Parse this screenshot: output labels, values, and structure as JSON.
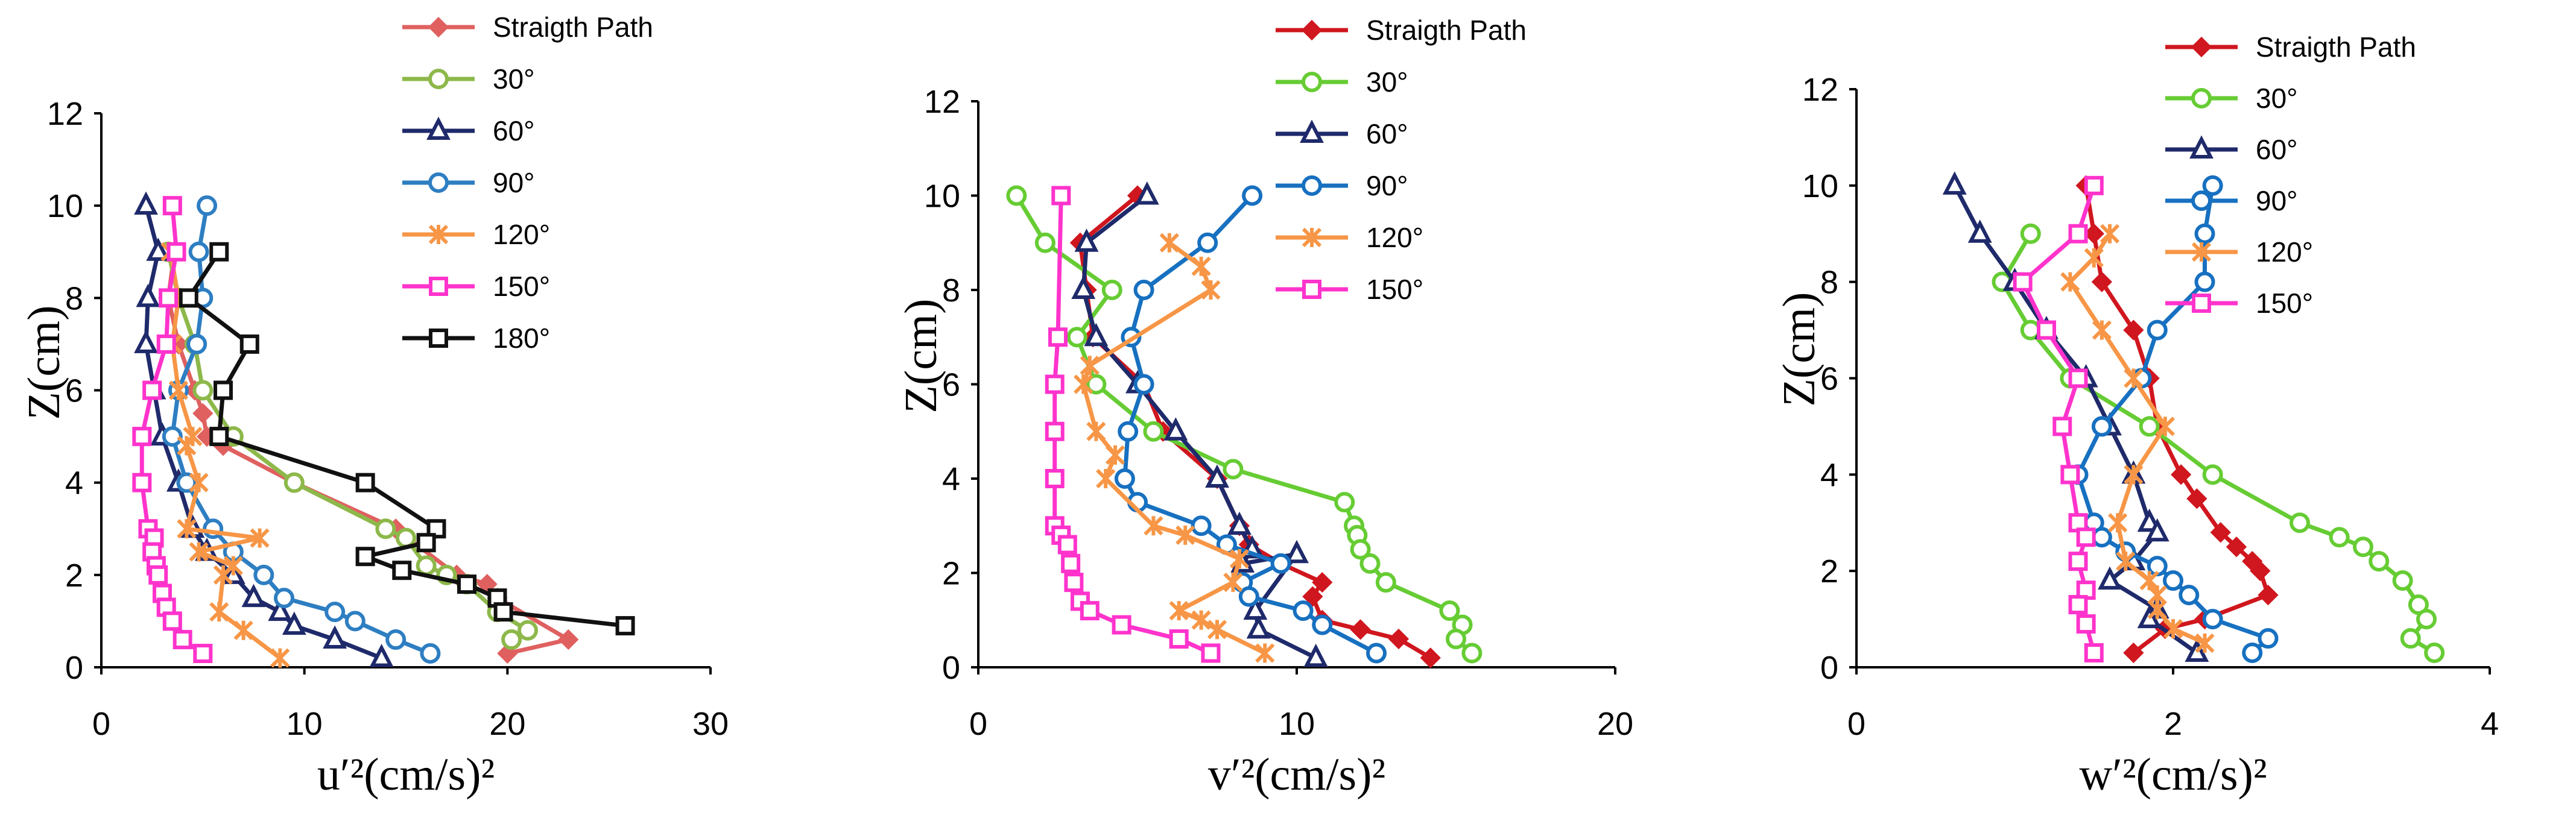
{
  "chart_data": [
    {
      "type": "line",
      "xlabel": "u′²(cm/s)²",
      "ylabel": "Z(cm)",
      "xlim": [
        0,
        30
      ],
      "ylim": [
        0,
        12
      ],
      "xticks": [
        0,
        10,
        20,
        30
      ],
      "yticks": [
        0,
        2,
        4,
        6,
        8,
        10,
        12
      ],
      "legend_position": "top-right",
      "series": [
        {
          "name": "Straigth Path",
          "color": "#E06060",
          "marker": "diamond",
          "x": [
            3.6,
            3.3,
            3.8,
            4.6,
            5.0,
            5.2,
            6.0,
            9.5,
            14.5,
            17.5,
            19.0,
            19.5,
            23.0,
            20.0
          ],
          "y": [
            9,
            8,
            7,
            6,
            5.5,
            5,
            4.8,
            4,
            3,
            2,
            1.8,
            1.5,
            0.6,
            0.3
          ]
        },
        {
          "name": "30°",
          "color": "#8DB84A",
          "marker": "circle",
          "x": [
            3.3,
            3.8,
            4.6,
            5.0,
            6.5,
            9.5,
            14.0,
            15.0,
            16.0,
            17.0,
            18.0,
            19.5,
            21.0,
            20.2
          ],
          "y": [
            9,
            8,
            7,
            6,
            5,
            4,
            3,
            2.8,
            2.2,
            2.0,
            1.8,
            1.2,
            0.8,
            0.6
          ]
        },
        {
          "name": "60°",
          "color": "#1F2A6B",
          "marker": "triangle",
          "x": [
            2.2,
            2.8,
            2.3,
            2.2,
            2.6,
            3.0,
            3.8,
            4.5,
            5.2,
            6.5,
            7.5,
            8.8,
            9.5,
            11.5,
            13.8
          ],
          "y": [
            10,
            9,
            8,
            7,
            6,
            5,
            4,
            3,
            2.5,
            2,
            1.5,
            1.2,
            0.9,
            0.6,
            0.2
          ]
        },
        {
          "name": "90°",
          "color": "#2E7EC2",
          "marker": "circle",
          "x": [
            5.2,
            4.8,
            5.0,
            4.7,
            3.8,
            3.5,
            4.2,
            5.5,
            6.5,
            8.0,
            9.0,
            11.5,
            12.5,
            14.5,
            16.2
          ],
          "y": [
            10,
            9,
            8,
            7,
            6,
            5,
            4,
            3,
            2.5,
            2,
            1.5,
            1.2,
            1.0,
            0.6,
            0.3
          ]
        },
        {
          "name": "120°",
          "color": "#F79646",
          "marker": "x",
          "x": [
            3.4,
            3.8,
            3.5,
            3.8,
            4.5,
            4.2,
            4.8,
            4.2,
            7.8,
            4.8,
            6.5,
            6.0,
            5.8,
            7.0,
            8.8
          ],
          "y": [
            9,
            8,
            7,
            6,
            5,
            4.8,
            4,
            3,
            2.8,
            2.5,
            2.2,
            2,
            1.2,
            0.8,
            0.2
          ]
        },
        {
          "name": "150°",
          "color": "#FF33CC",
          "marker": "square",
          "x": [
            3.5,
            3.7,
            3.3,
            3.2,
            2.5,
            2.0,
            2.0,
            2.3,
            2.6,
            2.5,
            2.7,
            2.8,
            3.0,
            3.2,
            3.5,
            4.0,
            5.0
          ],
          "y": [
            10,
            9,
            8,
            7,
            6,
            5,
            4,
            3,
            2.8,
            2.5,
            2.2,
            2,
            1.6,
            1.3,
            1.0,
            0.6,
            0.3
          ]
        },
        {
          "name": "180°",
          "color": "#111111",
          "marker": "square",
          "x": [
            5.8,
            4.3,
            7.3,
            6.0,
            5.8,
            13.0,
            16.5,
            16.0,
            13.0,
            14.8,
            18.0,
            19.5,
            19.8,
            25.8
          ],
          "y": [
            9,
            8,
            7,
            6,
            5,
            4,
            3,
            2.7,
            2.4,
            2.1,
            1.8,
            1.5,
            1.2,
            0.9
          ]
        }
      ]
    },
    {
      "type": "line",
      "xlabel": "v′²(cm/s)²",
      "ylabel": "Z(cm)",
      "xlim": [
        0,
        20
      ],
      "ylim": [
        0,
        12
      ],
      "xticks": [
        0,
        10,
        20
      ],
      "yticks": [
        0,
        2,
        4,
        6,
        8,
        10,
        12
      ],
      "legend_position": "top-right",
      "series": [
        {
          "name": "Straigth Path",
          "color": "#D0161E",
          "marker": "diamond",
          "x": [
            5.0,
            3.2,
            3.4,
            3.6,
            5.2,
            5.8,
            7.5,
            8.2,
            8.5,
            9.5,
            10.8,
            10.5,
            10.8,
            12.0,
            13.2,
            14.2
          ],
          "y": [
            10,
            9,
            8,
            7,
            6,
            5,
            4,
            3,
            2.6,
            2.2,
            1.8,
            1.5,
            1.0,
            0.8,
            0.6,
            0.2
          ]
        },
        {
          "name": "30°",
          "color": "#66CC33",
          "marker": "circle",
          "x": [
            1.2,
            2.1,
            4.2,
            3.1,
            3.7,
            5.5,
            8.0,
            11.5,
            11.8,
            11.9,
            12.0,
            12.3,
            12.8,
            14.8,
            15.2,
            15.0,
            15.5
          ],
          "y": [
            10,
            9,
            8,
            7,
            6,
            5,
            4.2,
            3.5,
            3,
            2.8,
            2.5,
            2.2,
            1.8,
            1.2,
            0.9,
            0.6,
            0.3
          ]
        },
        {
          "name": "60°",
          "color": "#1F2A6B",
          "marker": "triangle",
          "x": [
            5.3,
            3.4,
            3.3,
            3.7,
            5.0,
            6.2,
            7.5,
            8.2,
            8.6,
            8.3,
            10.0,
            8.7,
            8.8,
            10.6
          ],
          "y": [
            10,
            9,
            8,
            7,
            6,
            5,
            4,
            3,
            2.5,
            2.2,
            2.4,
            1.2,
            0.8,
            0.2
          ]
        },
        {
          "name": "90°",
          "color": "#1770C0",
          "marker": "circle",
          "x": [
            8.6,
            7.2,
            5.2,
            4.8,
            5.2,
            4.7,
            4.6,
            5.0,
            7.0,
            7.8,
            9.5,
            8.3,
            8.5,
            10.2,
            10.8,
            12.5
          ],
          "y": [
            10,
            9,
            8,
            7,
            6,
            5,
            4,
            3.5,
            3,
            2.6,
            2.2,
            1.8,
            1.5,
            1.2,
            0.9,
            0.3
          ]
        },
        {
          "name": "120°",
          "color": "#F79646",
          "marker": "x",
          "x": [
            6.0,
            7.0,
            7.3,
            3.5,
            3.3,
            3.7,
            4.3,
            4.0,
            5.5,
            6.5,
            8.2,
            8.0,
            6.3,
            7.0,
            7.5,
            9.0
          ],
          "y": [
            9,
            8.5,
            8,
            6.4,
            6,
            5,
            4.5,
            4,
            3,
            2.8,
            2.3,
            1.8,
            1.2,
            1.0,
            0.8,
            0.3
          ]
        },
        {
          "name": "150°",
          "color": "#FF33CC",
          "marker": "square",
          "x": [
            2.6,
            2.5,
            2.4,
            2.4,
            2.4,
            2.4,
            2.6,
            2.8,
            2.9,
            3.0,
            3.2,
            3.5,
            4.5,
            6.3,
            7.3
          ],
          "y": [
            10,
            7,
            6,
            5,
            4,
            3,
            2.8,
            2.6,
            2.2,
            1.8,
            1.4,
            1.2,
            0.9,
            0.6,
            0.3
          ]
        }
      ]
    },
    {
      "type": "line",
      "xlabel": "w′²(cm/s)²",
      "ylabel": "Z(cm)",
      "xlim": [
        0,
        4
      ],
      "ylim": [
        0,
        12
      ],
      "xticks": [
        0,
        2,
        4
      ],
      "yticks": [
        0,
        2,
        4,
        6,
        8,
        10,
        12
      ],
      "legend_position": "top-right",
      "series": [
        {
          "name": "Straigth Path",
          "color": "#D0161E",
          "marker": "diamond",
          "x": [
            1.45,
            1.5,
            1.55,
            1.75,
            1.85,
            1.9,
            2.05,
            2.15,
            2.3,
            2.4,
            2.5,
            2.55,
            2.6,
            2.2,
            1.95,
            1.75
          ],
          "y": [
            10,
            9,
            8,
            7,
            6,
            5,
            4,
            3.5,
            2.8,
            2.5,
            2.2,
            2,
            1.5,
            1,
            0.8,
            0.3
          ]
        },
        {
          "name": "30°",
          "color": "#66CC33",
          "marker": "circle",
          "x": [
            1.1,
            0.92,
            1.1,
            1.35,
            1.85,
            2.25,
            2.8,
            3.05,
            3.2,
            3.3,
            3.45,
            3.55,
            3.6,
            3.5,
            3.65
          ],
          "y": [
            9,
            8,
            7,
            6,
            5,
            4,
            3,
            2.7,
            2.5,
            2.2,
            1.8,
            1.3,
            1.0,
            0.6,
            0.3
          ]
        },
        {
          "name": "60°",
          "color": "#1F2A6B",
          "marker": "triangle",
          "x": [
            0.62,
            0.78,
            1.0,
            1.2,
            1.45,
            1.6,
            1.75,
            1.85,
            1.9,
            1.75,
            1.6,
            1.9,
            1.85,
            2.15
          ],
          "y": [
            10,
            9,
            8,
            7,
            6,
            5,
            4,
            3,
            2.8,
            2.2,
            1.8,
            1.2,
            1.0,
            0.3
          ]
        },
        {
          "name": "90°",
          "color": "#1770C0",
          "marker": "circle",
          "x": [
            2.25,
            2.2,
            2.2,
            1.9,
            1.8,
            1.55,
            1.4,
            1.5,
            1.55,
            1.7,
            1.9,
            2.0,
            2.1,
            2.25,
            2.6,
            2.5
          ],
          "y": [
            10,
            9,
            8,
            7,
            6,
            5,
            4,
            3,
            2.7,
            2.4,
            2.1,
            1.8,
            1.5,
            1.0,
            0.6,
            0.3
          ]
        },
        {
          "name": "120°",
          "color": "#F79646",
          "marker": "x",
          "x": [
            1.6,
            1.5,
            1.35,
            1.55,
            1.75,
            1.95,
            1.75,
            1.65,
            1.7,
            1.85,
            1.9,
            1.9,
            2.0,
            2.2
          ],
          "y": [
            9,
            8.5,
            8,
            7,
            6,
            5,
            4,
            3,
            2.2,
            1.8,
            1.5,
            1.2,
            0.8,
            0.5
          ]
        },
        {
          "name": "150°",
          "color": "#FF33CC",
          "marker": "square",
          "x": [
            1.5,
            1.4,
            1.05,
            1.2,
            1.4,
            1.3,
            1.35,
            1.4,
            1.45,
            1.4,
            1.45,
            1.4,
            1.45,
            1.5
          ],
          "y": [
            10,
            9,
            8,
            7,
            6,
            5,
            4,
            3,
            2.7,
            2.2,
            1.6,
            1.3,
            0.9,
            0.3
          ]
        }
      ]
    }
  ]
}
